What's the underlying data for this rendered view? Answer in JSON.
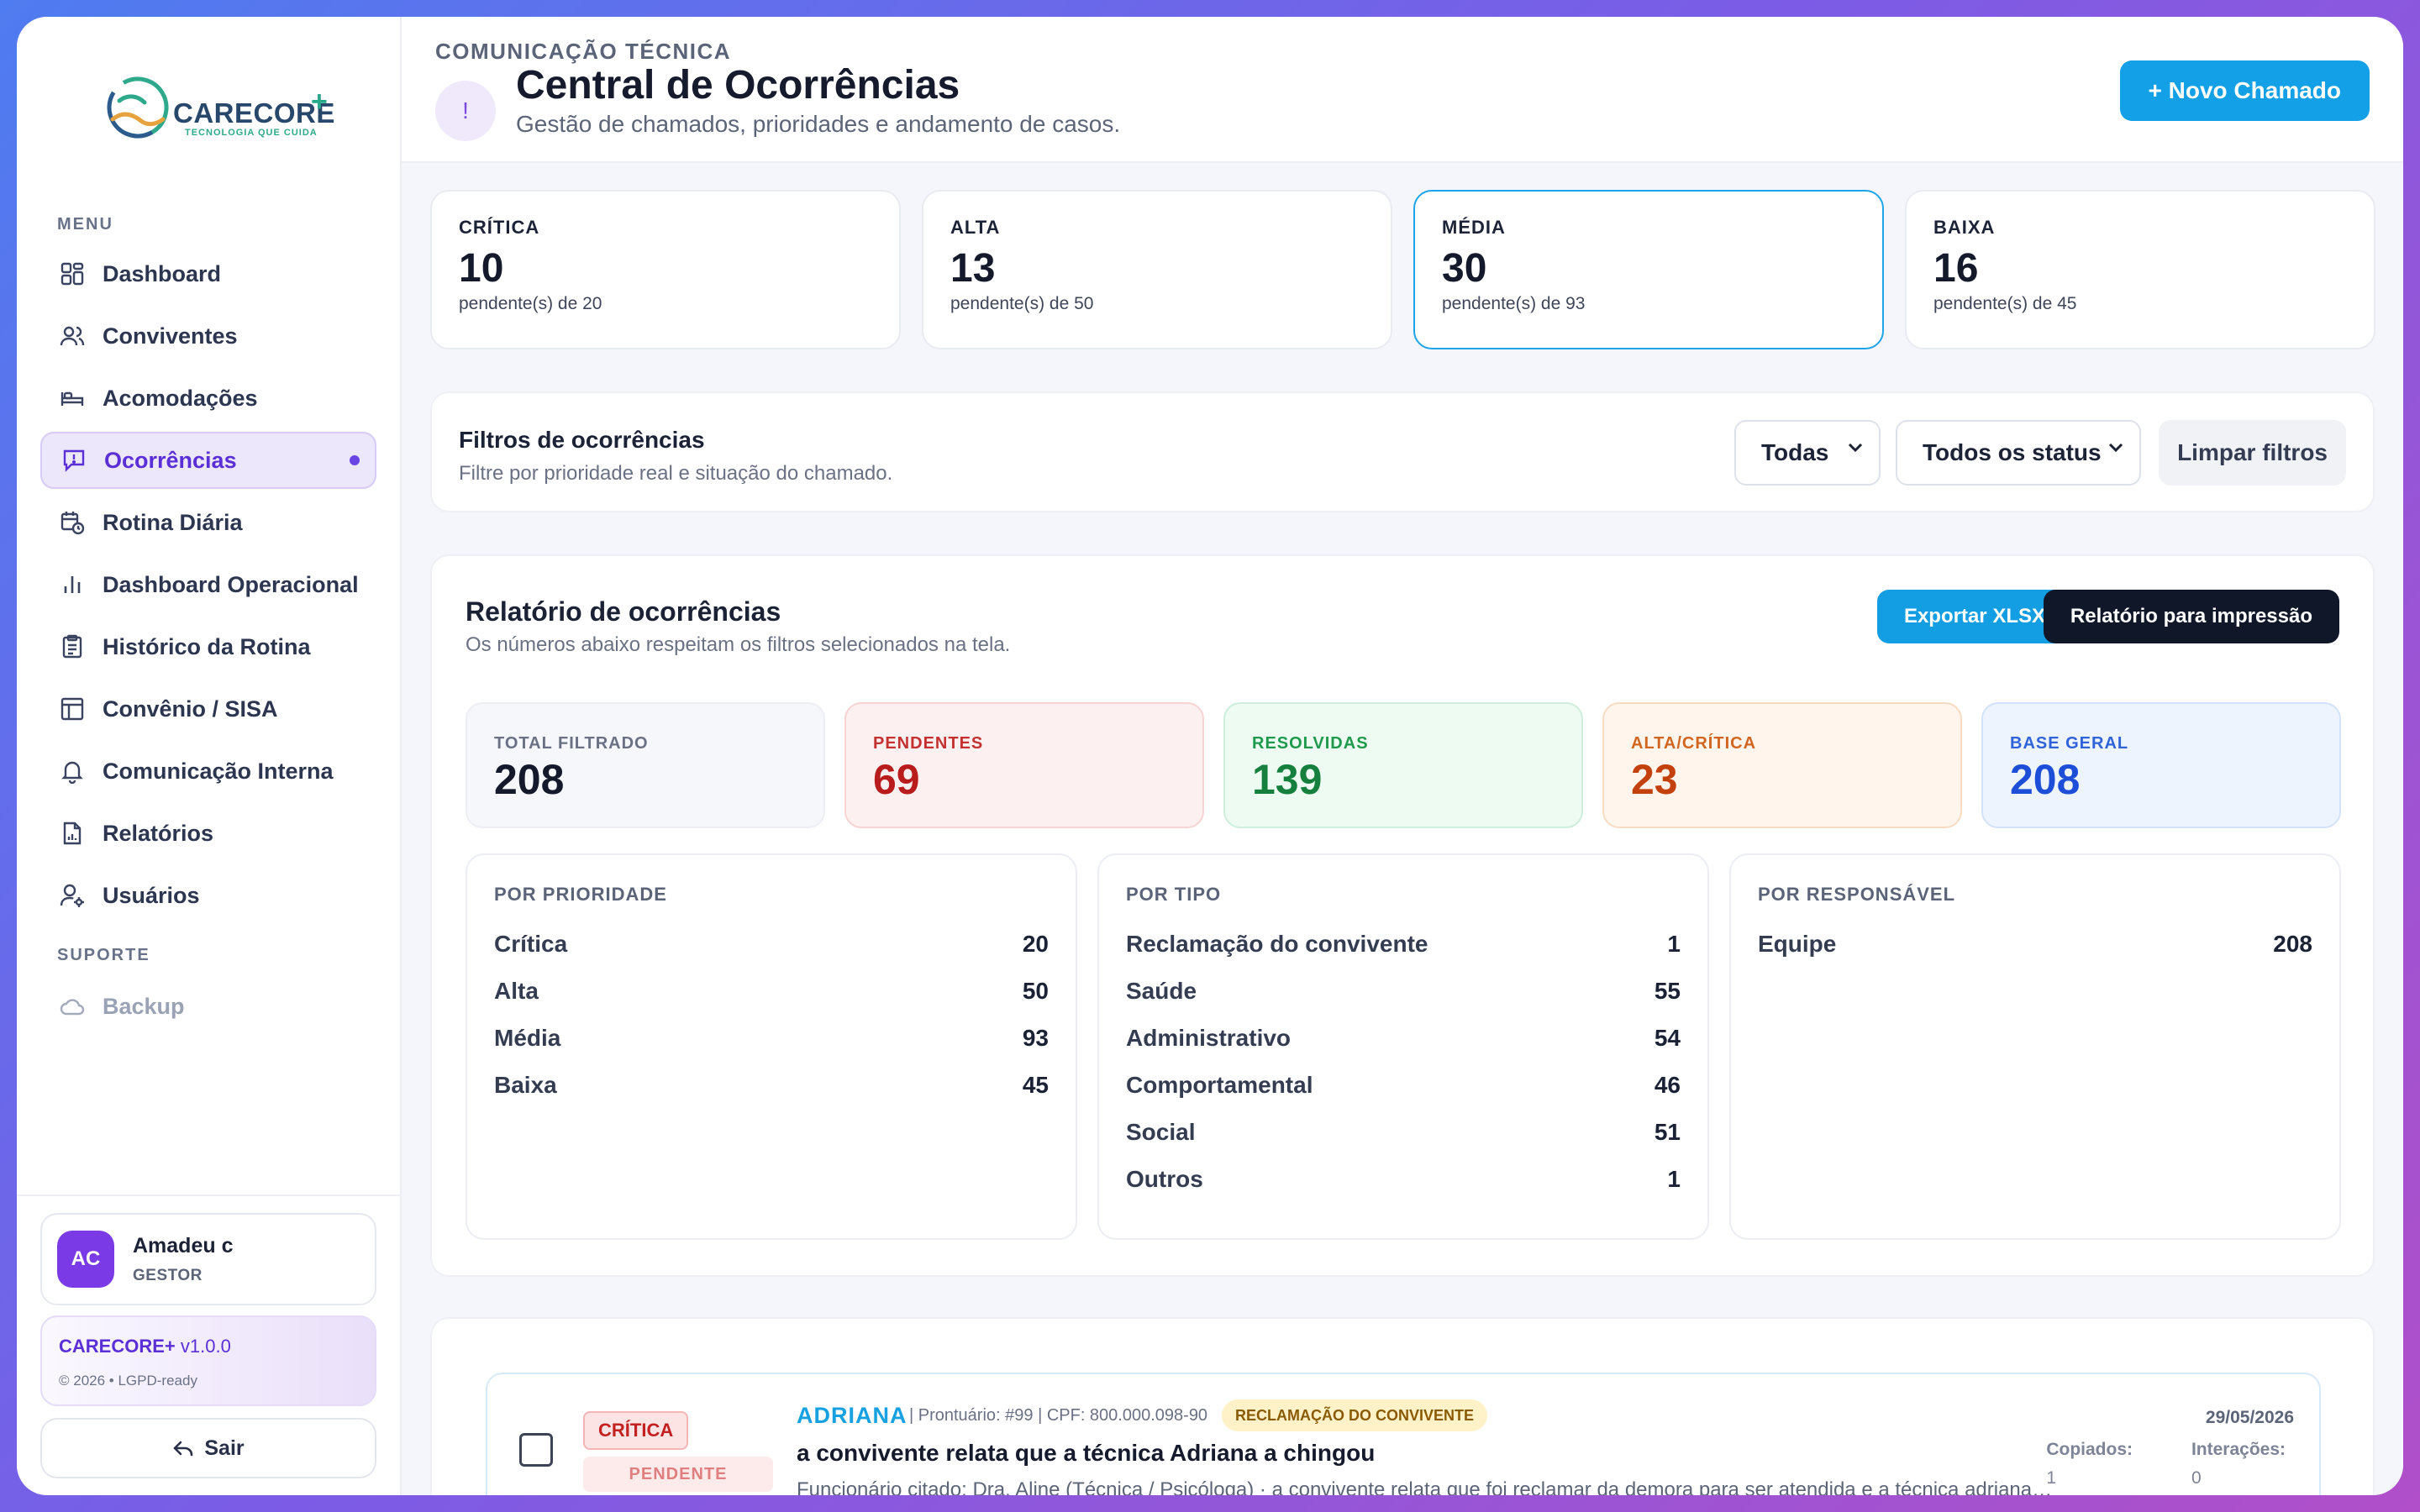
{
  "brand": {
    "name": "CARECORE",
    "plus": "+",
    "tagline": "TECNOLOGIA QUE CUIDA"
  },
  "sidebar": {
    "menu_label": "MENU",
    "items": [
      {
        "label": "Dashboard",
        "icon": "dashboard-icon"
      },
      {
        "label": "Conviventes",
        "icon": "users-icon"
      },
      {
        "label": "Acomodações",
        "icon": "bed-icon"
      },
      {
        "label": "Ocorrências",
        "icon": "alert-message-icon",
        "active": true
      },
      {
        "label": "Rotina Diária",
        "icon": "calendar-clock-icon"
      },
      {
        "label": "Dashboard Operacional",
        "icon": "bar-chart-icon"
      },
      {
        "label": "Histórico da Rotina",
        "icon": "clipboard-icon"
      },
      {
        "label": "Convênio / SISA",
        "icon": "layout-icon"
      },
      {
        "label": "Comunicação Interna",
        "icon": "bell-icon"
      },
      {
        "label": "Relatórios",
        "icon": "report-icon"
      },
      {
        "label": "Usuários",
        "icon": "user-settings-icon"
      }
    ],
    "support_label": "SUPORTE",
    "support_items": [
      {
        "label": "Backup",
        "icon": "cloud-icon",
        "disabled": true
      }
    ],
    "user": {
      "initials": "AC",
      "name": "Amadeu c",
      "role": "GESTOR"
    },
    "version": {
      "brand": "CARECORE+",
      "version": "v1.0.0",
      "copyright": "© 2026 • LGPD-ready"
    },
    "logout_label": "Sair"
  },
  "header": {
    "eyebrow": "COMUNICAÇÃO TÉCNICA",
    "badge": "!",
    "title": "Central de Ocorrências",
    "subtitle": "Gestão de chamados, prioridades e andamento de casos.",
    "new_button": "+ Novo Chamado"
  },
  "priority_cards": [
    {
      "label": "CRÍTICA",
      "value": "10",
      "sub": "pendente(s) de 20"
    },
    {
      "label": "ALTA",
      "value": "13",
      "sub": "pendente(s) de 50"
    },
    {
      "label": "MÉDIA",
      "value": "30",
      "sub": "pendente(s) de 93",
      "selected": true
    },
    {
      "label": "BAIXA",
      "value": "16",
      "sub": "pendente(s) de 45"
    }
  ],
  "filters": {
    "title": "Filtros de ocorrências",
    "subtitle": "Filtre por prioridade real e situação do chamado.",
    "priority_select": "Todas",
    "status_select": "Todos os status",
    "clear_button": "Limpar filtros"
  },
  "report": {
    "title": "Relatório de ocorrências",
    "subtitle": "Os números abaixo respeitam os filtros selecionados na tela.",
    "export_button": "Exportar XLSX",
    "print_button": "Relatório para impressão",
    "stats": [
      {
        "label": "TOTAL FILTRADO",
        "value": "208",
        "bg": "#f6f7fa",
        "border": "#eceef3",
        "label_color": "#6a7184",
        "value_color": "#141a2c"
      },
      {
        "label": "PENDENTES",
        "value": "69",
        "bg": "#fdf0f0",
        "border": "#f7d3d3",
        "label_color": "#c43131",
        "value_color": "#b91c1c"
      },
      {
        "label": "RESOLVIDAS",
        "value": "139",
        "bg": "#eefbf2",
        "border": "#cdeedb",
        "label_color": "#1f9a4d",
        "value_color": "#15803d"
      },
      {
        "label": "ALTA/CRÍTICA",
        "value": "23",
        "bg": "#fff5ec",
        "border": "#f8dcc2",
        "label_color": "#d0661f",
        "value_color": "#c2410c"
      },
      {
        "label": "BASE GERAL",
        "value": "208",
        "bg": "#eef4fe",
        "border": "#d3e2fa",
        "label_color": "#2f63d8",
        "value_color": "#1d4ed8"
      }
    ],
    "groups": [
      {
        "title": "POR PRIORIDADE",
        "rows": [
          {
            "label": "Crítica",
            "count": "20"
          },
          {
            "label": "Alta",
            "count": "50"
          },
          {
            "label": "Média",
            "count": "93"
          },
          {
            "label": "Baixa",
            "count": "45"
          }
        ]
      },
      {
        "title": "POR TIPO",
        "rows": [
          {
            "label": "Reclamação do convivente",
            "count": "1"
          },
          {
            "label": "Saúde",
            "count": "55"
          },
          {
            "label": "Administrativo",
            "count": "54"
          },
          {
            "label": "Comportamental",
            "count": "46"
          },
          {
            "label": "Social",
            "count": "51"
          },
          {
            "label": "Outros",
            "count": "1"
          }
        ]
      },
      {
        "title": "POR RESPONSÁVEL",
        "rows": [
          {
            "label": "Equipe",
            "count": "208"
          }
        ]
      }
    ]
  },
  "case": {
    "priority": "CRÍTICA",
    "status": "PENDENTE",
    "name": "ADRIANA",
    "meta": "| Prontuário: #99 | CPF: 800.000.098-90",
    "type": "RECLAMAÇÃO DO CONVIVENTE",
    "title": "a convivente relata que a técnica Adriana a chingou",
    "description": "Funcionário citado: Dra. Aline (Técnica / Psicóloga) · a convivente relata que foi reclamar da demora para ser atendida e a técnica adrianaa c...",
    "date": "29/05/2026",
    "copied_label": "Copiados:",
    "copied_value": "1",
    "interactions_label": "Interações:",
    "interactions_value": "0"
  }
}
